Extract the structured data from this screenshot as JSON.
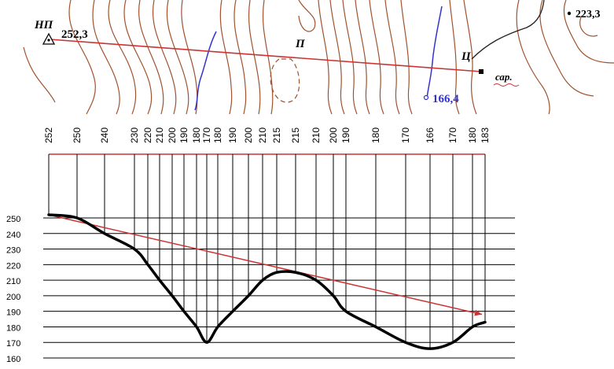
{
  "map": {
    "np_label": "НП",
    "np_height": "252,3",
    "p_label": "П",
    "c_label": "Ц",
    "sar_label": "сар.",
    "water_height": "166,4",
    "hill_height": "223,3",
    "colors": {
      "contour": "#a0522d",
      "water": "#3333cc",
      "line": "#cc3333"
    }
  },
  "chart_data": {
    "type": "line",
    "x_heights": [
      "252",
      "250",
      "240",
      "230",
      "220",
      "210",
      "200",
      "190",
      "180",
      "170",
      "180",
      "190",
      "200",
      "210",
      "215",
      "215",
      "210",
      "200",
      "190",
      "180",
      "170",
      "166",
      "170",
      "180",
      "183"
    ],
    "y_ticks": [
      "250",
      "240",
      "230",
      "220",
      "210",
      "200",
      "190",
      "180",
      "170",
      "160"
    ],
    "ylim": [
      160,
      250
    ],
    "profile": [
      {
        "d": 0,
        "h": 252
      },
      {
        "d": 1,
        "h": 250
      },
      {
        "d": 2,
        "h": 240
      },
      {
        "d": 3,
        "h": 230
      },
      {
        "d": 4,
        "h": 220
      },
      {
        "d": 5,
        "h": 210
      },
      {
        "d": 6,
        "h": 200
      },
      {
        "d": 7,
        "h": 190
      },
      {
        "d": 8,
        "h": 180
      },
      {
        "d": 9,
        "h": 170
      },
      {
        "d": 10,
        "h": 180
      },
      {
        "d": 11,
        "h": 190
      },
      {
        "d": 12,
        "h": 200
      },
      {
        "d": 13,
        "h": 210
      },
      {
        "d": 14,
        "h": 215
      },
      {
        "d": 15,
        "h": 215
      },
      {
        "d": 16,
        "h": 210
      },
      {
        "d": 17,
        "h": 200
      },
      {
        "d": 18,
        "h": 190
      },
      {
        "d": 19,
        "h": 180
      },
      {
        "d": 20,
        "h": 170
      },
      {
        "d": 21,
        "h": 166
      },
      {
        "d": 22,
        "h": 170
      },
      {
        "d": 23,
        "h": 180
      },
      {
        "d": 24,
        "h": 183
      }
    ],
    "sightline": {
      "from_h": 252,
      "to_h": 188
    }
  }
}
